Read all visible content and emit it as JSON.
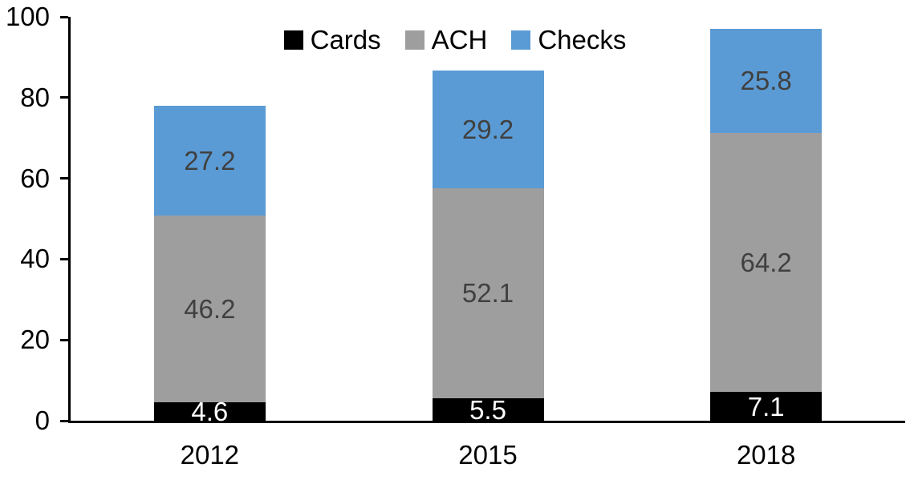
{
  "chart_data": {
    "type": "bar",
    "stacked": true,
    "title": "",
    "xlabel": "",
    "ylabel": "",
    "categories": [
      "2012",
      "2015",
      "2018"
    ],
    "series": [
      {
        "name": "Cards",
        "color": "#000000",
        "label_color": "#ffffff",
        "values": [
          4.6,
          5.5,
          7.1
        ]
      },
      {
        "name": "ACH",
        "color": "#9e9e9e",
        "label_color": "#404040",
        "values": [
          46.2,
          52.1,
          64.2
        ]
      },
      {
        "name": "Checks",
        "color": "#5b9bd5",
        "label_color": "#404040",
        "values": [
          27.2,
          29.2,
          25.8
        ]
      }
    ],
    "y_ticks": [
      0,
      20,
      40,
      60,
      80,
      100
    ],
    "ylim": [
      0,
      100
    ],
    "legend_position": "top-center",
    "grid": false,
    "axis_color": "#000000"
  }
}
